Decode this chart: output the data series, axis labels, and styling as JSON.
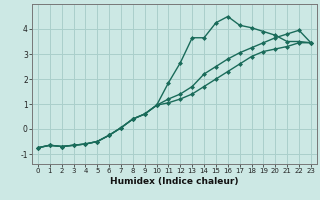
{
  "x": [
    0,
    1,
    2,
    3,
    4,
    5,
    6,
    7,
    8,
    9,
    10,
    11,
    12,
    13,
    14,
    15,
    16,
    17,
    18,
    19,
    20,
    21,
    22,
    23
  ],
  "line1": [
    -0.75,
    -0.65,
    -0.7,
    -0.65,
    -0.6,
    -0.5,
    -0.25,
    0.05,
    0.4,
    0.6,
    0.95,
    1.85,
    2.65,
    3.65,
    3.65,
    4.25,
    4.5,
    4.15,
    4.05,
    3.9,
    3.75,
    3.5,
    3.5,
    3.45
  ],
  "line2": [
    -0.75,
    -0.65,
    -0.7,
    -0.65,
    -0.6,
    -0.5,
    -0.25,
    0.05,
    0.4,
    0.6,
    0.95,
    1.2,
    1.4,
    1.7,
    2.2,
    2.5,
    2.8,
    3.05,
    3.25,
    3.45,
    3.65,
    3.8,
    3.95,
    3.45
  ],
  "line3": [
    -0.75,
    -0.65,
    -0.7,
    -0.65,
    -0.6,
    -0.5,
    -0.25,
    0.05,
    0.4,
    0.6,
    0.95,
    1.05,
    1.2,
    1.4,
    1.7,
    2.0,
    2.3,
    2.6,
    2.9,
    3.1,
    3.2,
    3.3,
    3.45,
    3.45
  ],
  "line_color": "#1a6b5a",
  "bg_color": "#cce8e4",
  "grid_color": "#aacfcb",
  "xlabel": "Humidex (Indice chaleur)",
  "ylim": [
    -1.4,
    5.0
  ],
  "xlim": [
    -0.5,
    23.5
  ],
  "yticks": [
    -1,
    0,
    1,
    2,
    3,
    4
  ],
  "xticks": [
    0,
    1,
    2,
    3,
    4,
    5,
    6,
    7,
    8,
    9,
    10,
    11,
    12,
    13,
    14,
    15,
    16,
    17,
    18,
    19,
    20,
    21,
    22,
    23
  ],
  "marker": "D",
  "markersize": 2.0,
  "linewidth": 1.0,
  "tick_fontsize": 5.0,
  "xlabel_fontsize": 6.5
}
